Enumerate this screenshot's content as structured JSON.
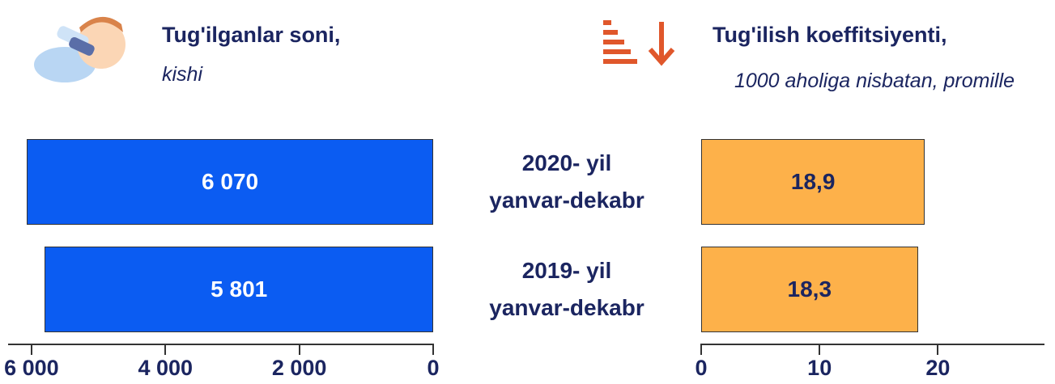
{
  "chart_data": {
    "type": "bar",
    "orientation": "horizontal",
    "categories": [
      "2020- yil\nyanvar-dekabr",
      "2019- yil\nyanvar-dekabr"
    ],
    "series": [
      {
        "name": "Tug'ilganlar soni,",
        "subtitle": "kishi",
        "color": "#0b5cf2",
        "label_color": "#ffffff",
        "values": [
          6070,
          5801
        ],
        "value_labels": [
          "6 070",
          "5 801"
        ],
        "xlim": [
          0,
          6350
        ],
        "reversed": true,
        "xticks": [
          {
            "value": 6000,
            "label": "6 000"
          },
          {
            "value": 4000,
            "label": "4 000"
          },
          {
            "value": 2000,
            "label": "2 000"
          },
          0
        ]
      },
      {
        "name": "Tug'ilish koeffitsiyenti,",
        "subtitle": "1000 aholiga nisbatan, promille",
        "color": "#fdb14a",
        "label_color": "#1b2560",
        "values": [
          18.9,
          18.3
        ],
        "value_labels": [
          "18,9",
          "18,3"
        ],
        "xlim": [
          0,
          29
        ],
        "reversed": false,
        "xticks": [
          0,
          10,
          20
        ]
      }
    ]
  }
}
